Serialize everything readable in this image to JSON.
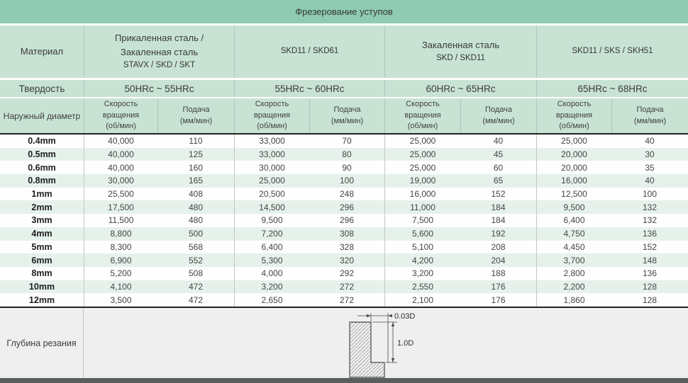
{
  "title": "Фрезерование уступов",
  "colors": {
    "title_bar": "#8ecbb2",
    "header_bg": "#c8e3d3",
    "row_tint": "#e5f1ea",
    "depth_bg": "#eeefee",
    "bottom_bar": "#595f5a"
  },
  "header": {
    "material_label": "Материал",
    "hardness_label": "Твердость",
    "diameter_label": "Наружный диаметр",
    "groups": [
      {
        "lines": [
          "Прикаленная сталь /",
          "Закаленная сталь",
          "STAVX / SKD / SKT"
        ],
        "hardness": "50HRc ~ 55HRc"
      },
      {
        "lines": [
          "SKD11 / SKD61"
        ],
        "hardness": "55HRc ~ 60HRc"
      },
      {
        "lines": [
          "Закаленная сталь",
          "SKD / SKD11"
        ],
        "hardness": "60HRc ~ 65HRc"
      },
      {
        "lines": [
          "SKD11 / SKS / SKH51"
        ],
        "hardness": "65HRc ~ 68HRc"
      }
    ],
    "speed_label": [
      "Скорость",
      "вращения",
      "(об/мин)"
    ],
    "feed_label": [
      "Подача",
      "(мм/мин)"
    ]
  },
  "rows": [
    {
      "d": "0.4mm",
      "v": [
        "40,000",
        "110",
        "33,000",
        "70",
        "25,000",
        "40",
        "25,000",
        "40"
      ]
    },
    {
      "d": "0.5mm",
      "v": [
        "40,000",
        "125",
        "33,000",
        "80",
        "25,000",
        "45",
        "20,000",
        "30"
      ]
    },
    {
      "d": "0.6mm",
      "v": [
        "40,000",
        "160",
        "30,000",
        "90",
        "25,000",
        "60",
        "20,000",
        "35"
      ]
    },
    {
      "d": "0.8mm",
      "v": [
        "30,000",
        "165",
        "25,000",
        "100",
        "19,000",
        "65",
        "16,000",
        "40"
      ]
    },
    {
      "d": "1mm",
      "v": [
        "25,500",
        "408",
        "20,500",
        "248",
        "16,000",
        "152",
        "12,500",
        "100"
      ]
    },
    {
      "d": "2mm",
      "v": [
        "17,500",
        "480",
        "14,500",
        "296",
        "11,000",
        "184",
        "9,500",
        "132"
      ]
    },
    {
      "d": "3mm",
      "v": [
        "11,500",
        "480",
        "9,500",
        "296",
        "7,500",
        "184",
        "6,400",
        "132"
      ]
    },
    {
      "d": "4mm",
      "v": [
        "8,800",
        "500",
        "7,200",
        "308",
        "5,600",
        "192",
        "4,750",
        "136"
      ]
    },
    {
      "d": "5mm",
      "v": [
        "8,300",
        "568",
        "6,400",
        "328",
        "5,100",
        "208",
        "4,450",
        "152"
      ]
    },
    {
      "d": "6mm",
      "v": [
        "6,900",
        "552",
        "5,300",
        "320",
        "4,200",
        "204",
        "3,700",
        "148"
      ]
    },
    {
      "d": "8mm",
      "v": [
        "5,200",
        "508",
        "4,000",
        "292",
        "3,200",
        "188",
        "2,800",
        "136"
      ]
    },
    {
      "d": "10mm",
      "v": [
        "4,100",
        "472",
        "3,200",
        "272",
        "2,550",
        "176",
        "2,200",
        "128"
      ]
    },
    {
      "d": "12mm",
      "v": [
        "3,500",
        "472",
        "2,650",
        "272",
        "2,100",
        "176",
        "1,860",
        "128"
      ]
    }
  ],
  "depth": {
    "label": "Глубина резания",
    "dim_top": "0.03D",
    "dim_side": "1.0D"
  }
}
